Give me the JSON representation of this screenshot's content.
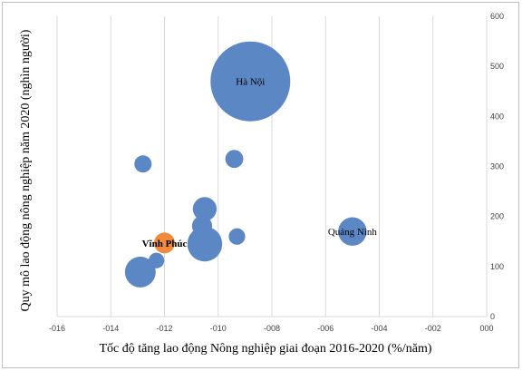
{
  "chart_data": {
    "type": "scatter",
    "subtype": "bubble",
    "xlabel": "Tốc độ tăng lao động Nông nghiệp giai đoạn 2016-2020 (%/năm)",
    "ylabel": "Quy mô lao động nông nghiệp năm 2020 (nghìn người)",
    "xlim": [
      -0.16,
      0
    ],
    "ylim": [
      0,
      600
    ],
    "x_ticks": [
      "-016",
      "-014",
      "-012",
      "-010",
      "-008",
      "-006",
      "-004",
      "-002",
      "000"
    ],
    "y_ticks": [
      "0",
      "100",
      "200",
      "300",
      "400",
      "500",
      "600"
    ],
    "grid": "vertical",
    "y_axis_position": "right",
    "colors": {
      "default": "#5b87c5",
      "highlight": "#f28a3c"
    },
    "points": [
      {
        "x": -0.088,
        "y": 470,
        "size": 470,
        "label": "Hà Nội",
        "highlight": false
      },
      {
        "x": -0.05,
        "y": 170,
        "size": 60,
        "label": "Quảng Ninh",
        "highlight": false
      },
      {
        "x": -0.12,
        "y": 147,
        "size": 32,
        "label": "Vĩnh Phúc",
        "highlight": true
      },
      {
        "x": -0.128,
        "y": 305,
        "size": 22,
        "label": "",
        "highlight": false
      },
      {
        "x": -0.094,
        "y": 315,
        "size": 24,
        "label": "",
        "highlight": false
      },
      {
        "x": -0.105,
        "y": 215,
        "size": 42,
        "label": "",
        "highlight": false
      },
      {
        "x": -0.106,
        "y": 181,
        "size": 30,
        "label": "",
        "highlight": false
      },
      {
        "x": -0.105,
        "y": 145,
        "size": 90,
        "label": "",
        "highlight": false
      },
      {
        "x": -0.093,
        "y": 160,
        "size": 20,
        "label": "",
        "highlight": false
      },
      {
        "x": -0.123,
        "y": 112,
        "size": 18,
        "label": "",
        "highlight": false
      },
      {
        "x": -0.129,
        "y": 89,
        "size": 70,
        "label": "",
        "highlight": false
      }
    ]
  }
}
